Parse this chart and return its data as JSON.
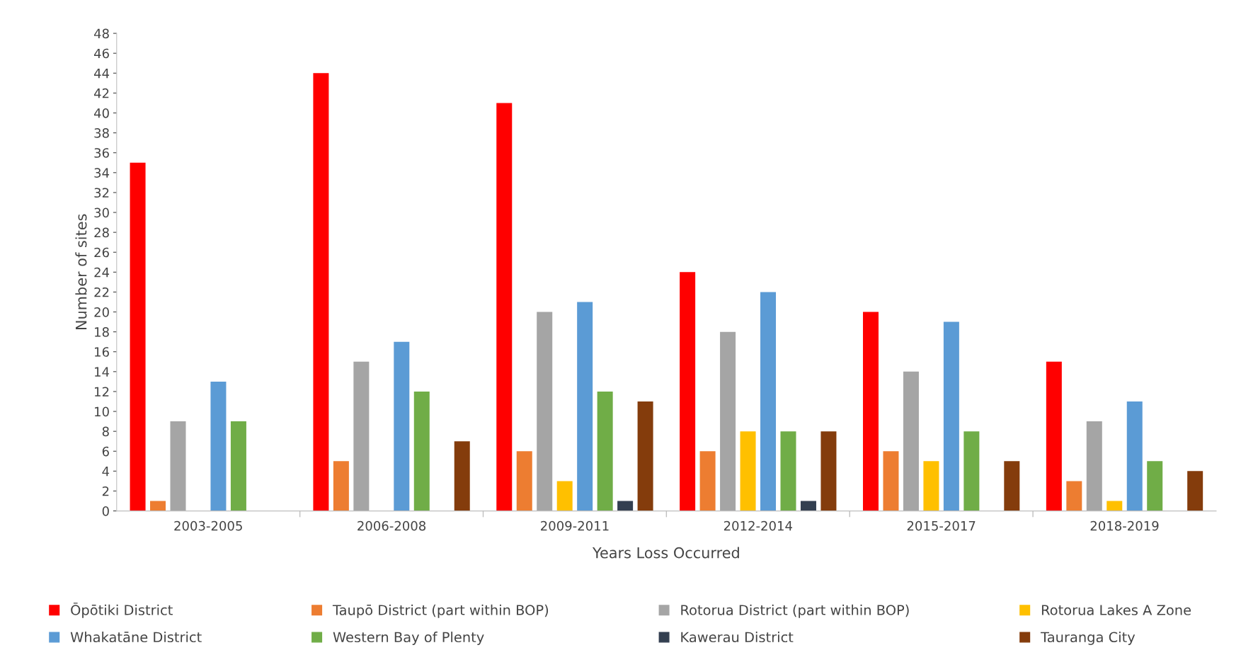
{
  "chart_data": {
    "type": "bar",
    "xlabel": "Years Loss Occurred",
    "ylabel": "Number of sites",
    "categories": [
      "2003-2005",
      "2006-2008",
      "2009-2011",
      "2012-2014",
      "2015-2017",
      "2018-2019"
    ],
    "series": [
      {
        "name": "Ōpōtiki District",
        "color": "#ff0000",
        "values": [
          35,
          44,
          41,
          24,
          20,
          15
        ]
      },
      {
        "name": "Taupō District (part within BOP)",
        "color": "#ed7d31",
        "values": [
          1,
          5,
          6,
          6,
          6,
          3
        ]
      },
      {
        "name": "Rotorua District (part within BOP)",
        "color": "#a5a5a5",
        "values": [
          9,
          15,
          20,
          18,
          14,
          9
        ]
      },
      {
        "name": "Rotorua Lakes A Zone",
        "color": "#ffc000",
        "values": [
          0,
          0,
          3,
          8,
          5,
          1
        ]
      },
      {
        "name": "Whakatāne District",
        "color": "#5b9bd5",
        "values": [
          13,
          17,
          21,
          22,
          19,
          11
        ]
      },
      {
        "name": "Western Bay of Plenty",
        "color": "#70ad47",
        "values": [
          9,
          12,
          12,
          8,
          8,
          5
        ]
      },
      {
        "name": "Kawerau District",
        "color": "#333f50",
        "values": [
          0,
          0,
          1,
          1,
          0,
          0
        ]
      },
      {
        "name": "Tauranga City",
        "color": "#843c0c",
        "values": [
          0,
          7,
          11,
          8,
          5,
          4
        ]
      }
    ],
    "ylim": [
      0,
      48
    ],
    "yticks": [
      0,
      2,
      4,
      6,
      8,
      10,
      12,
      14,
      16,
      18,
      20,
      22,
      24,
      26,
      28,
      30,
      32,
      34,
      36,
      38,
      40,
      42,
      44,
      46,
      48
    ],
    "grid": false,
    "legend": "bottom"
  }
}
